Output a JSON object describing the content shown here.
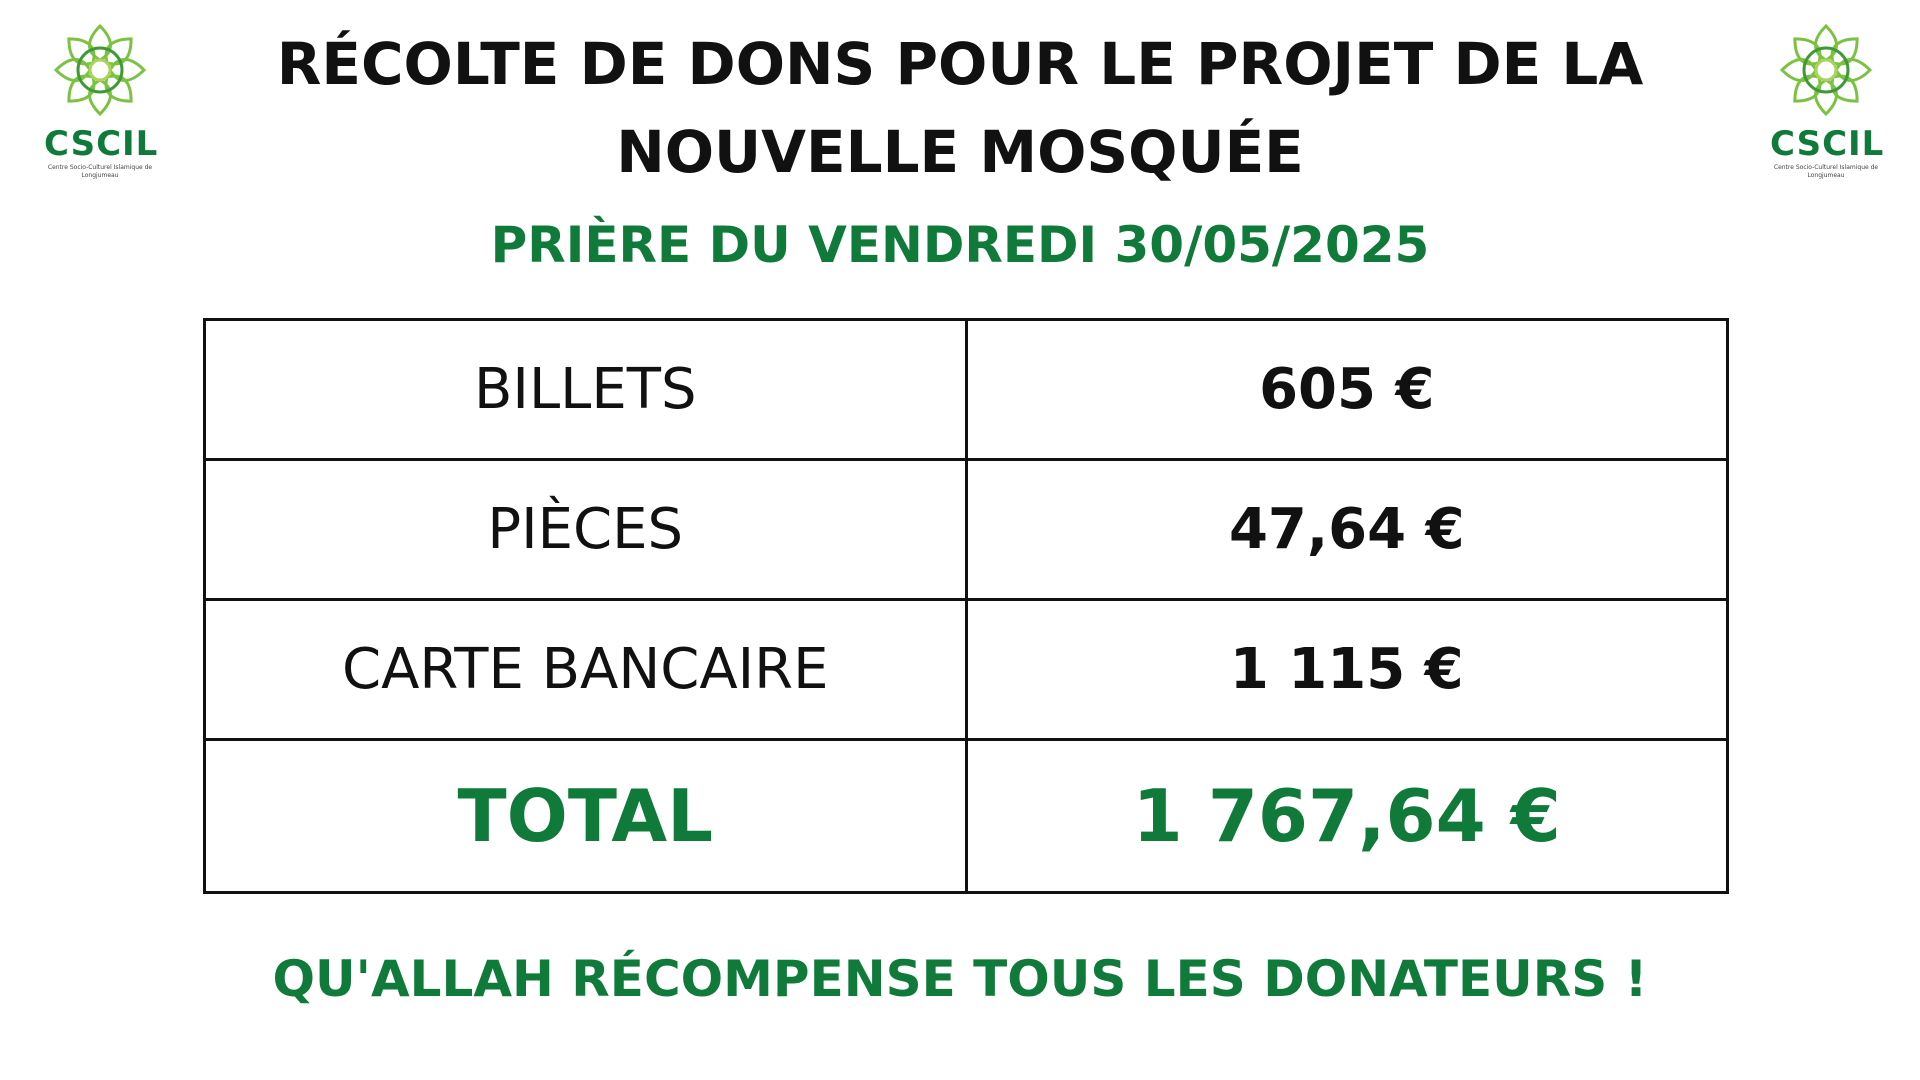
{
  "logo": {
    "text": "CSCIL",
    "subtitle": "Centre Socio-Culturel Islamique de Longjumeau",
    "color": "#0f7a3a",
    "icon": "green-flower-ornament-icon"
  },
  "header": {
    "title_line1": "RÉCOLTE DE DONS POUR LE PROJET DE LA",
    "title_line2": "NOUVELLE MOSQUÉE",
    "subtitle": "PRIÈRE DU VENDREDI 30/05/2025"
  },
  "table": {
    "rows": [
      {
        "label": "BILLETS",
        "amount": "605 €"
      },
      {
        "label": "PIÈCES",
        "amount": "47,64 €"
      },
      {
        "label": "CARTE BANCAIRE",
        "amount": "1 115 €"
      }
    ],
    "total": {
      "label": "TOTAL",
      "amount": "1 767,64 €"
    }
  },
  "footer": {
    "message": "QU'ALLAH RÉCOMPENSE TOUS LES DONATEURS !"
  },
  "colors": {
    "accent_green": "#0f7a3a",
    "text": "#111111",
    "background": "#ffffff"
  }
}
